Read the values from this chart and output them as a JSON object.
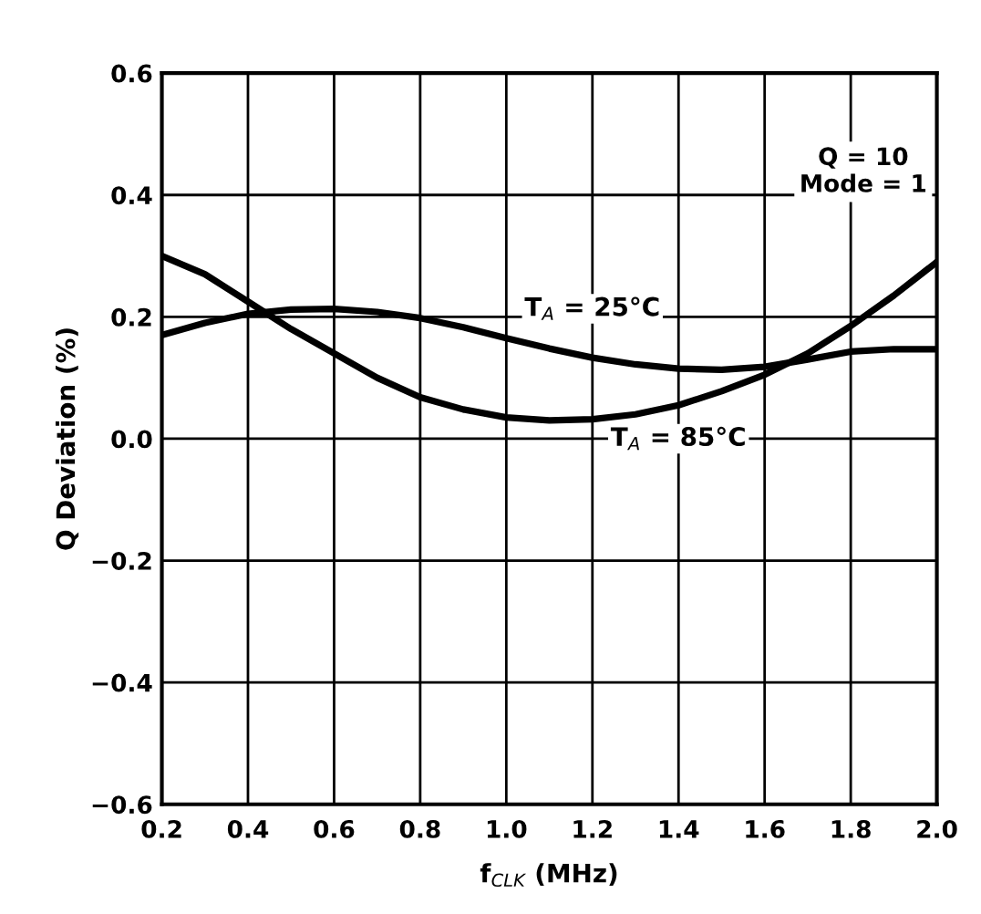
{
  "chart_data": {
    "type": "line",
    "xlabel": "f$_{CLK}$ (MHz)",
    "ylabel": "Q Deviation (%)",
    "x": [
      0.2,
      0.3,
      0.4,
      0.5,
      0.6,
      0.7,
      0.8,
      0.9,
      1.0,
      1.1,
      1.2,
      1.3,
      1.4,
      1.5,
      1.6,
      1.7,
      1.8,
      1.9,
      2.0
    ],
    "series": [
      {
        "name": "T$_{A}$ = 25°C",
        "color": "#000000",
        "values": [
          0.17,
          0.19,
          0.205,
          0.212,
          0.213,
          0.208,
          0.198,
          0.183,
          0.165,
          0.148,
          0.133,
          0.122,
          0.115,
          0.113,
          0.118,
          0.13,
          0.143,
          0.147,
          0.147
        ]
      },
      {
        "name": "T$_{A}$ = 85°C",
        "color": "#000000",
        "values": [
          0.3,
          0.27,
          0.225,
          0.18,
          0.14,
          0.1,
          0.068,
          0.048,
          0.035,
          0.03,
          0.032,
          0.04,
          0.055,
          0.078,
          0.105,
          0.14,
          0.185,
          0.235,
          0.29
        ]
      }
    ],
    "annotations": [
      "Q = 10\nMode = 1"
    ],
    "xlim": [
      0.2,
      2.0
    ],
    "ylim": [
      -0.6,
      0.6
    ],
    "xticks": [
      0.2,
      0.4,
      0.6,
      0.8,
      {
        "value": 1,
        "label": "1.0"
      },
      1.2,
      1.4,
      1.6,
      1.8,
      {
        "value": 2,
        "label": "2.0"
      }
    ],
    "yticks": [
      {
        "value": -0.6,
        "label": "−0.6"
      },
      {
        "value": -0.4,
        "label": "−0.4"
      },
      {
        "value": -0.2,
        "label": "−0.2"
      },
      {
        "value": 0,
        "label": "0.0"
      },
      0.2,
      0.4,
      0.6
    ],
    "grid": true,
    "legend": false,
    "marker": "none",
    "line_style": "solid"
  }
}
